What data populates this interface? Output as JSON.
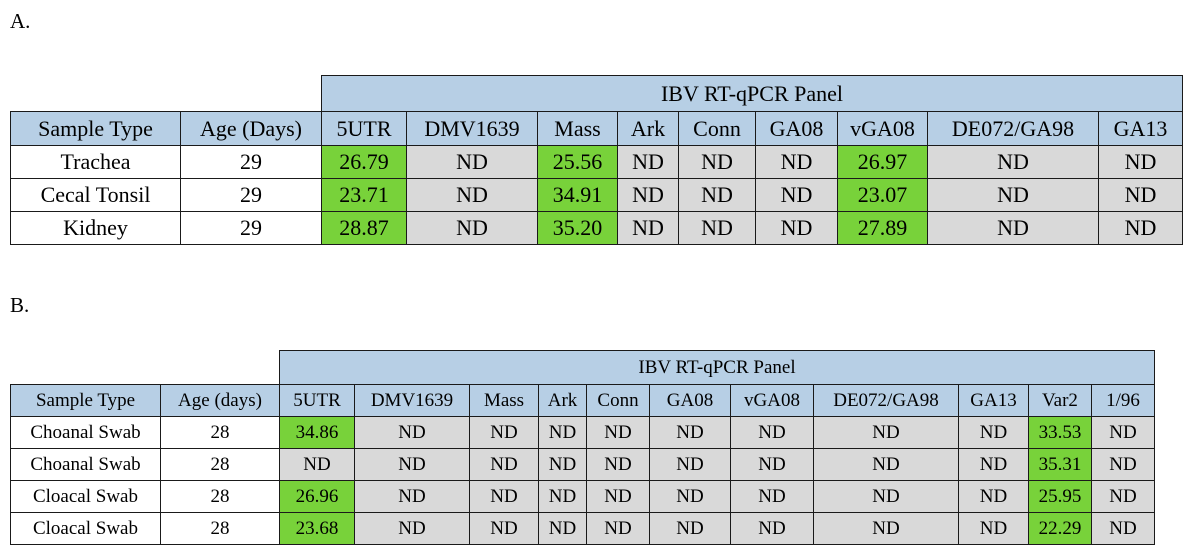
{
  "section_a": {
    "label": "A.",
    "panel_title": "IBV RT-qPCR Panel",
    "headers": [
      "Sample Type",
      "Age (Days)",
      "5UTR",
      "DMV1639",
      "Mass",
      "Ark",
      "Conn",
      "GA08",
      "vGA08",
      "DE072/GA98",
      "GA13"
    ],
    "rows": [
      [
        "Trachea",
        "29",
        "26.79",
        "ND",
        "25.56",
        "ND",
        "ND",
        "ND",
        "26.97",
        "ND",
        "ND"
      ],
      [
        "Cecal Tonsil",
        "29",
        "23.71",
        "ND",
        "34.91",
        "ND",
        "ND",
        "ND",
        "23.07",
        "ND",
        "ND"
      ],
      [
        "Kidney",
        "29",
        "28.87",
        "ND",
        "35.20",
        "ND",
        "ND",
        "ND",
        "27.89",
        "ND",
        "ND"
      ]
    ]
  },
  "section_b": {
    "label": "B.",
    "panel_title": "IBV RT-qPCR Panel",
    "headers": [
      "Sample Type",
      "Age (days)",
      "5UTR",
      "DMV1639",
      "Mass",
      "Ark",
      "Conn",
      "GA08",
      "vGA08",
      "DE072/GA98",
      "GA13",
      "Var2",
      "1/96"
    ],
    "rows": [
      [
        "Choanal Swab",
        "28",
        "34.86",
        "ND",
        "ND",
        "ND",
        "ND",
        "ND",
        "ND",
        "ND",
        "ND",
        "33.53",
        "ND"
      ],
      [
        "Choanal Swab",
        "28",
        "ND",
        "ND",
        "ND",
        "ND",
        "ND",
        "ND",
        "ND",
        "ND",
        "ND",
        "35.31",
        "ND"
      ],
      [
        "Cloacal Swab",
        "28",
        "26.96",
        "ND",
        "ND",
        "ND",
        "ND",
        "ND",
        "ND",
        "ND",
        "ND",
        "25.95",
        "ND"
      ],
      [
        "Cloacal Swab",
        "28",
        "23.68",
        "ND",
        "ND",
        "ND",
        "ND",
        "ND",
        "ND",
        "ND",
        "ND",
        "22.29",
        "ND"
      ]
    ]
  },
  "colors": {
    "header_blue": "#b7cfe5",
    "positive_green": "#78d23a",
    "not_detected_gray": "#d9d9d9"
  }
}
